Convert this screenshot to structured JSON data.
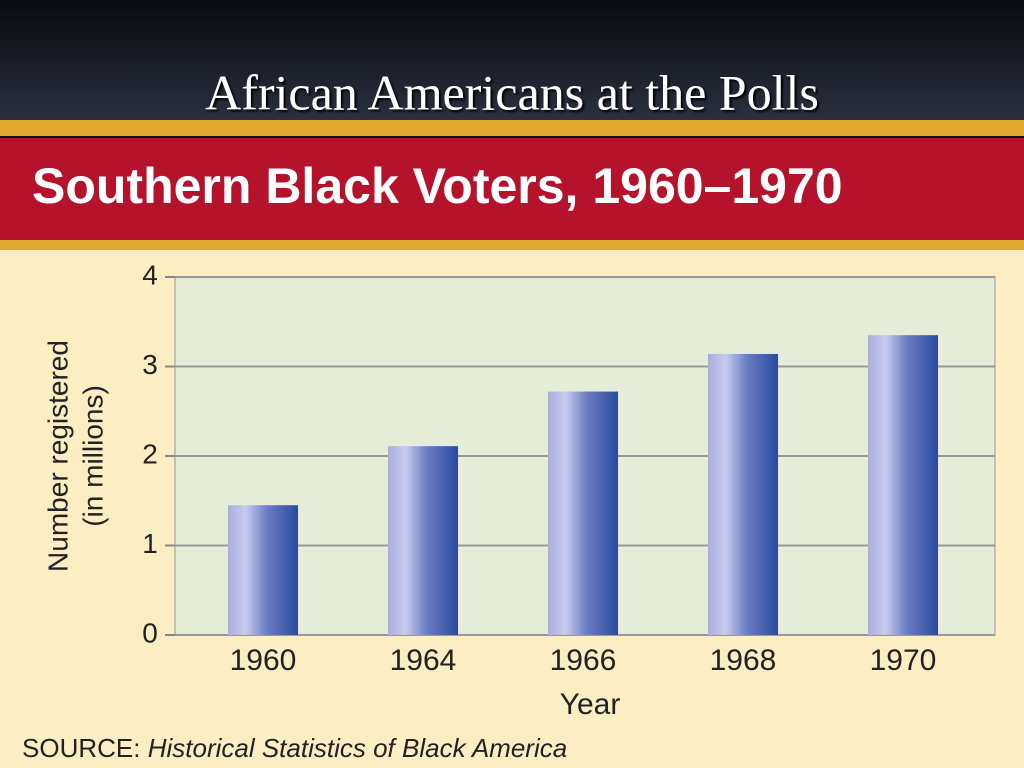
{
  "slide_title": "African Americans at the Polls",
  "chart_data": {
    "type": "bar",
    "title": "Southern Black Voters, 1960–1970",
    "categories": [
      "1960",
      "1964",
      "1966",
      "1968",
      "1970"
    ],
    "values": [
      1.45,
      2.11,
      2.72,
      3.14,
      3.35
    ],
    "color": "#2a4a9e",
    "xlabel": "Year",
    "ylabel": [
      "Number registered",
      "(in millions)"
    ],
    "ylim": [
      0,
      4
    ],
    "yticks": [
      0,
      1,
      2,
      3,
      4
    ],
    "grid": true,
    "source": {
      "label": "SOURCE:",
      "text": "Historical Statistics of Black America"
    }
  }
}
